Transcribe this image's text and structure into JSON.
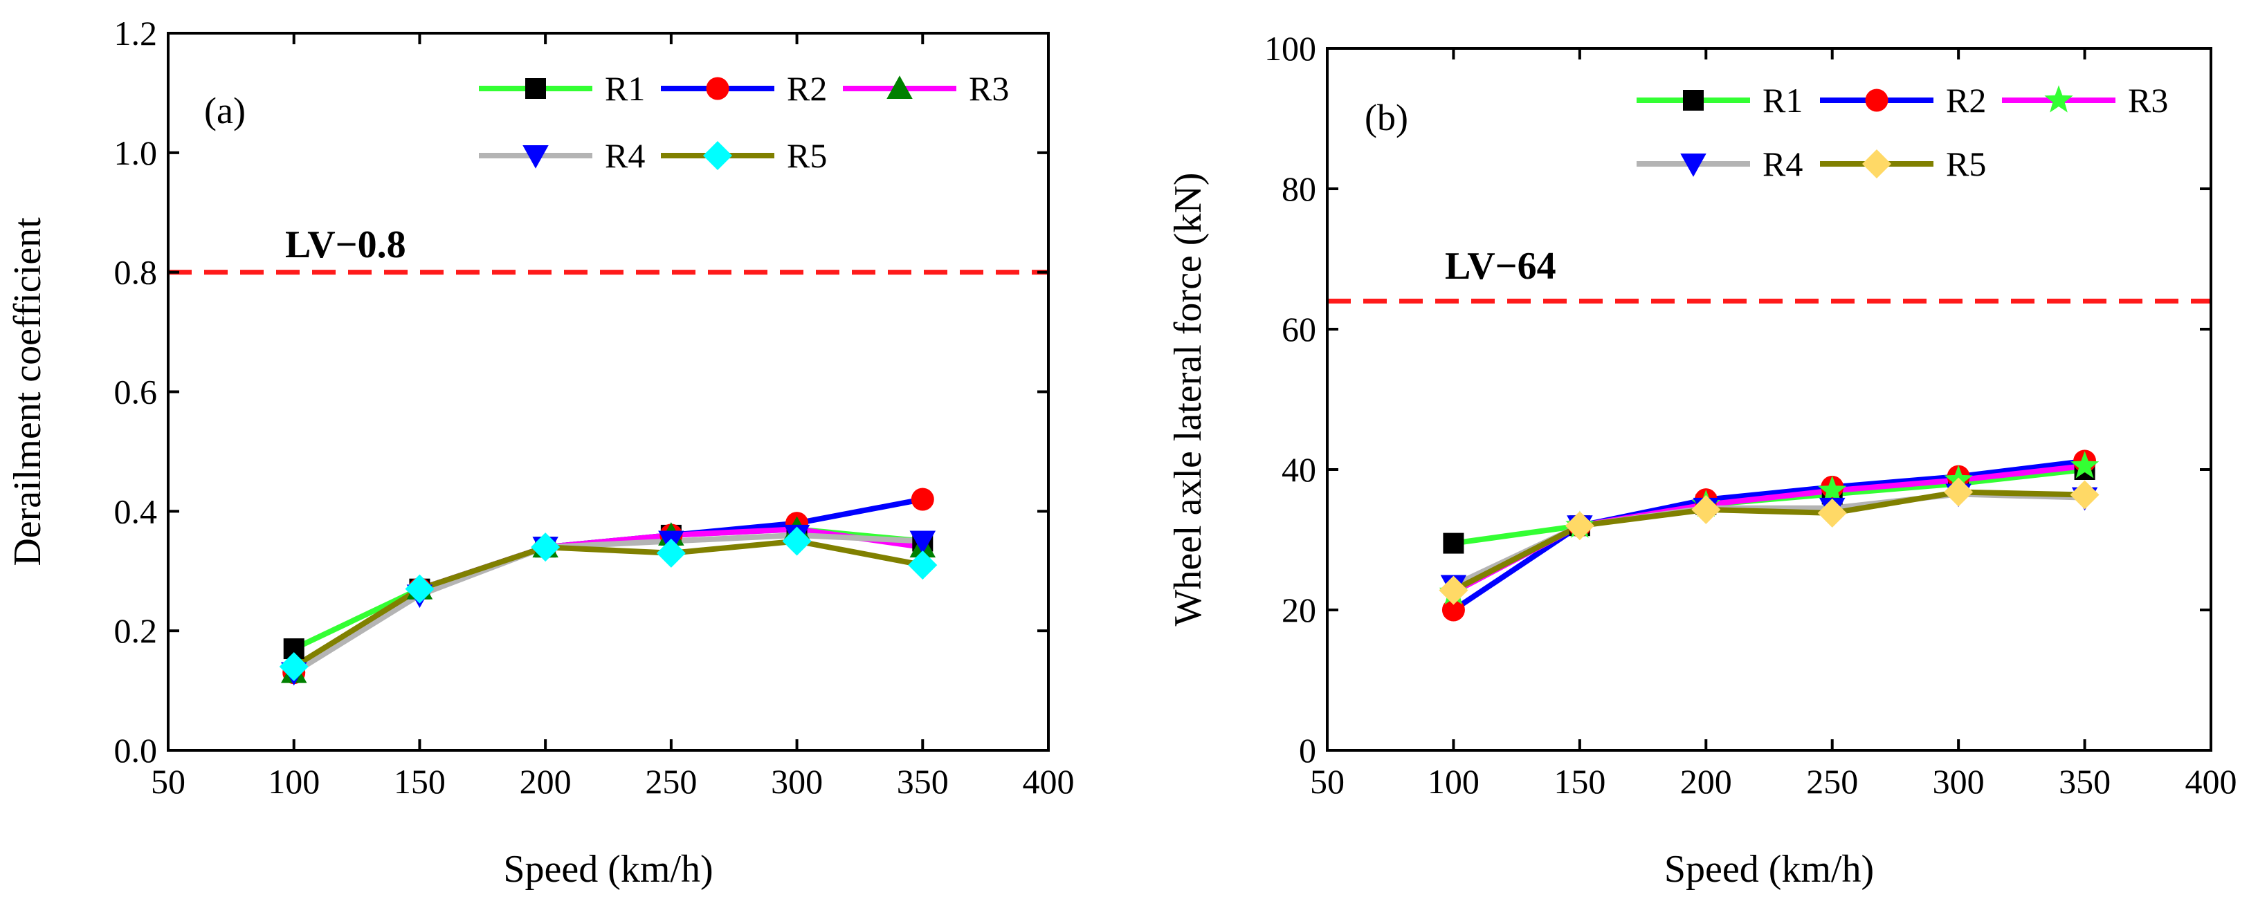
{
  "chart_data": [
    {
      "type": "line",
      "panel_label": "(a)",
      "title": "",
      "xlabel": "Speed (km/h)",
      "ylabel": "Derailment coefficient",
      "xlim": [
        50,
        400
      ],
      "ylim": [
        0.0,
        1.2
      ],
      "xticks": [
        "50",
        "100",
        "150",
        "200",
        "250",
        "300",
        "350",
        "400"
      ],
      "yticks": [
        "0.0",
        "0.2",
        "0.4",
        "0.6",
        "0.8",
        "1.0",
        "1.2"
      ],
      "grid": false,
      "legend_position": "top-right",
      "x": [
        100,
        150,
        200,
        250,
        300,
        350
      ],
      "threshold": {
        "label": "LV−0.8",
        "value": 0.8,
        "color": "#ff1a1a"
      },
      "series": [
        {
          "name": "R1",
          "line_color": "#33ff33",
          "marker": "square",
          "marker_color": "#000000",
          "values": [
            0.17,
            0.27,
            0.34,
            0.36,
            0.37,
            0.35
          ]
        },
        {
          "name": "R2",
          "line_color": "#0000ff",
          "marker": "circle",
          "marker_color": "#ff0000",
          "values": [
            0.13,
            0.27,
            0.34,
            0.36,
            0.38,
            0.42
          ]
        },
        {
          "name": "R3",
          "line_color": "#ff00ff",
          "marker": "triangle-up",
          "marker_color": "#008000",
          "values": [
            0.13,
            0.27,
            0.34,
            0.36,
            0.37,
            0.34
          ]
        },
        {
          "name": "R4",
          "line_color": "#b4b4b4",
          "marker": "triangle-down",
          "marker_color": "#0000ff",
          "values": [
            0.13,
            0.26,
            0.34,
            0.35,
            0.36,
            0.35
          ]
        },
        {
          "name": "R5",
          "line_color": "#808000",
          "marker": "diamond",
          "marker_color": "#00ffff",
          "values": [
            0.14,
            0.27,
            0.34,
            0.33,
            0.35,
            0.31
          ]
        }
      ]
    },
    {
      "type": "line",
      "panel_label": "(b)",
      "title": "",
      "xlabel": "Speed (km/h)",
      "ylabel": "Wheel axle lateral force (kN)",
      "xlim": [
        50,
        400
      ],
      "ylim": [
        0,
        100
      ],
      "xticks": [
        "50",
        "100",
        "150",
        "200",
        "250",
        "300",
        "350",
        "400"
      ],
      "yticks": [
        "0",
        "20",
        "40",
        "60",
        "80",
        "100"
      ],
      "grid": false,
      "legend_position": "top-right",
      "x": [
        100,
        150,
        200,
        250,
        300,
        350
      ],
      "threshold": {
        "label": "LV−64",
        "value": 64,
        "color": "#ff1a1a"
      },
      "series": [
        {
          "name": "R1",
          "line_color": "#33ff33",
          "marker": "square",
          "marker_color": "#000000",
          "values": [
            29.5,
            32.0,
            35.0,
            36.5,
            38.0,
            40.0
          ]
        },
        {
          "name": "R2",
          "line_color": "#0000ff",
          "marker": "circle",
          "marker_color": "#ff0000",
          "values": [
            20.0,
            32.0,
            35.7,
            37.5,
            39.0,
            41.2
          ]
        },
        {
          "name": "R3",
          "line_color": "#ff00ff",
          "marker": "star",
          "marker_color": "#33ff33",
          "values": [
            22.5,
            32.0,
            35.0,
            37.0,
            38.5,
            40.5
          ]
        },
        {
          "name": "R4",
          "line_color": "#b4b4b4",
          "marker": "triangle-down",
          "marker_color": "#0000ff",
          "values": [
            23.5,
            32.0,
            34.5,
            34.5,
            36.5,
            36.0
          ]
        },
        {
          "name": "R5",
          "line_color": "#808000",
          "marker": "diamond",
          "marker_color": "#ffd966",
          "values": [
            22.8,
            32.0,
            34.3,
            33.8,
            36.8,
            36.4
          ]
        }
      ]
    }
  ]
}
